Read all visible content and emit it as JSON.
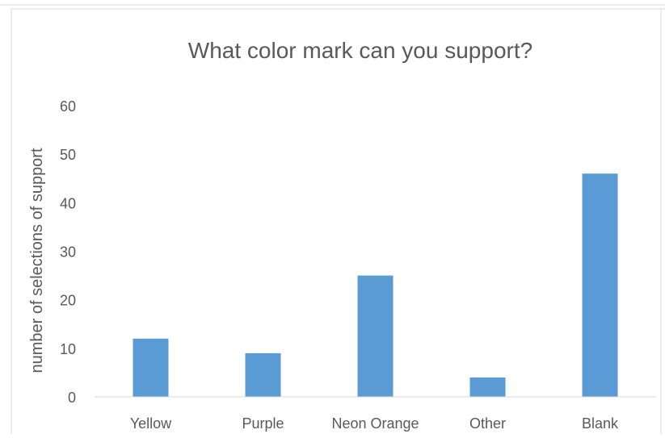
{
  "chart_data": {
    "type": "bar",
    "title": "What color mark can you support?",
    "xlabel": "",
    "ylabel": "number of selections of support",
    "categories": [
      "Yellow",
      "Purple",
      "Neon Orange",
      "Other",
      "Blank"
    ],
    "values": [
      12,
      9,
      25,
      4,
      46
    ],
    "ylim": [
      0,
      60
    ],
    "yticks": [
      0,
      10,
      20,
      30,
      40,
      50,
      60
    ],
    "grid": false,
    "legend": "none",
    "bar_color": "#5B9BD5"
  }
}
